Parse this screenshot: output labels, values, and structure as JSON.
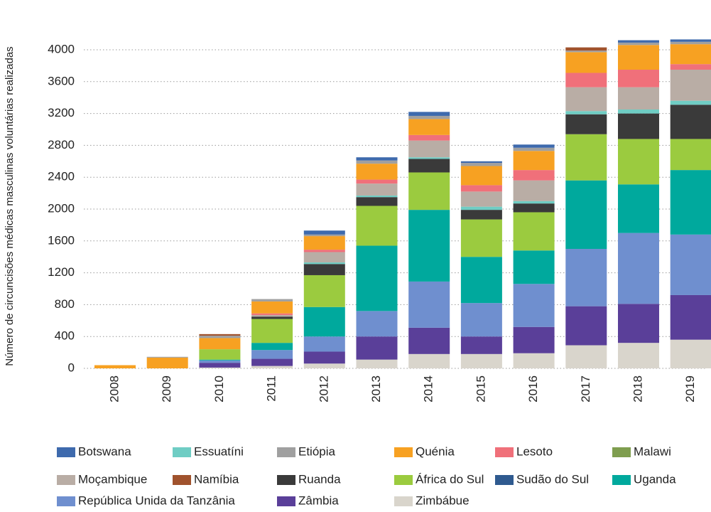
{
  "chart_data": {
    "type": "stacked_bar",
    "y_label": "Número de circuncisões médicas masculinas voluntárias realizadas",
    "categories": [
      "2008",
      "2009",
      "2010",
      "2011",
      "2012",
      "2013",
      "2014",
      "2015",
      "2016",
      "2017",
      "2018",
      "2019"
    ],
    "ylim": [
      0,
      4200
    ],
    "yticks": [
      0,
      400,
      800,
      1200,
      1600,
      2000,
      2400,
      2800,
      3200,
      3600,
      4000
    ],
    "grid": true,
    "series": [
      {
        "name": "Botswana",
        "color": "#3e6aad",
        "values": [
          0,
          0,
          0,
          0,
          50,
          40,
          50,
          20,
          40,
          0,
          30,
          30
        ]
      },
      {
        "name": "Essuatíni",
        "color": "#6fcdc4",
        "values": [
          0,
          0,
          0,
          0,
          20,
          20,
          20,
          40,
          30,
          40,
          50,
          50
        ]
      },
      {
        "name": "Etiópia",
        "color": "#a0a0a0",
        "values": [
          0,
          10,
          30,
          30,
          20,
          40,
          40,
          40,
          40,
          20,
          30,
          30
        ]
      },
      {
        "name": "Quénia",
        "color": "#f7a122",
        "values": [
          40,
          135,
          140,
          150,
          170,
          200,
          200,
          240,
          240,
          260,
          310,
          250
        ]
      },
      {
        "name": "Lesoto",
        "color": "#f0707a",
        "values": [
          0,
          0,
          0,
          20,
          30,
          50,
          70,
          80,
          130,
          180,
          220,
          70
        ]
      },
      {
        "name": "Malawi",
        "color": "#7f9e4f",
        "values": [
          0,
          0,
          0,
          0,
          0,
          0,
          0,
          0,
          0,
          0,
          0,
          0
        ]
      },
      {
        "name": "Moçambique",
        "color": "#b9ada5",
        "values": [
          0,
          0,
          0,
          20,
          130,
          150,
          210,
          190,
          260,
          300,
          280,
          390
        ]
      },
      {
        "name": "Namíbia",
        "color": "#a0522d",
        "values": [
          0,
          0,
          20,
          0,
          0,
          0,
          0,
          0,
          0,
          40,
          0,
          0
        ]
      },
      {
        "name": "Ruanda",
        "color": "#3a3a3a",
        "values": [
          0,
          0,
          0,
          30,
          140,
          110,
          170,
          120,
          110,
          250,
          320,
          430
        ]
      },
      {
        "name": "África do Sul",
        "color": "#9bcb3f",
        "values": [
          0,
          0,
          130,
          300,
          400,
          500,
          470,
          470,
          480,
          580,
          570,
          390
        ]
      },
      {
        "name": "Sudão do Sul",
        "color": "#2f5a8f",
        "values": [
          0,
          0,
          0,
          0,
          0,
          0,
          0,
          0,
          0,
          0,
          0,
          0
        ]
      },
      {
        "name": "Uganda",
        "color": "#00a99d",
        "values": [
          0,
          0,
          10,
          90,
          370,
          820,
          900,
          580,
          420,
          860,
          610,
          810
        ]
      },
      {
        "name": "República Unida da Tanzânia",
        "color": "#6f8fcf",
        "values": [
          0,
          0,
          30,
          110,
          190,
          320,
          580,
          420,
          540,
          720,
          890,
          760
        ]
      },
      {
        "name": "Zâmbia",
        "color": "#5a3f99",
        "values": [
          0,
          0,
          60,
          90,
          150,
          290,
          330,
          220,
          330,
          490,
          490,
          560
        ]
      },
      {
        "name": "Zimbábue",
        "color": "#d9d5cc",
        "values": [
          0,
          0,
          10,
          30,
          60,
          110,
          180,
          180,
          190,
          290,
          320,
          360
        ]
      }
    ]
  }
}
